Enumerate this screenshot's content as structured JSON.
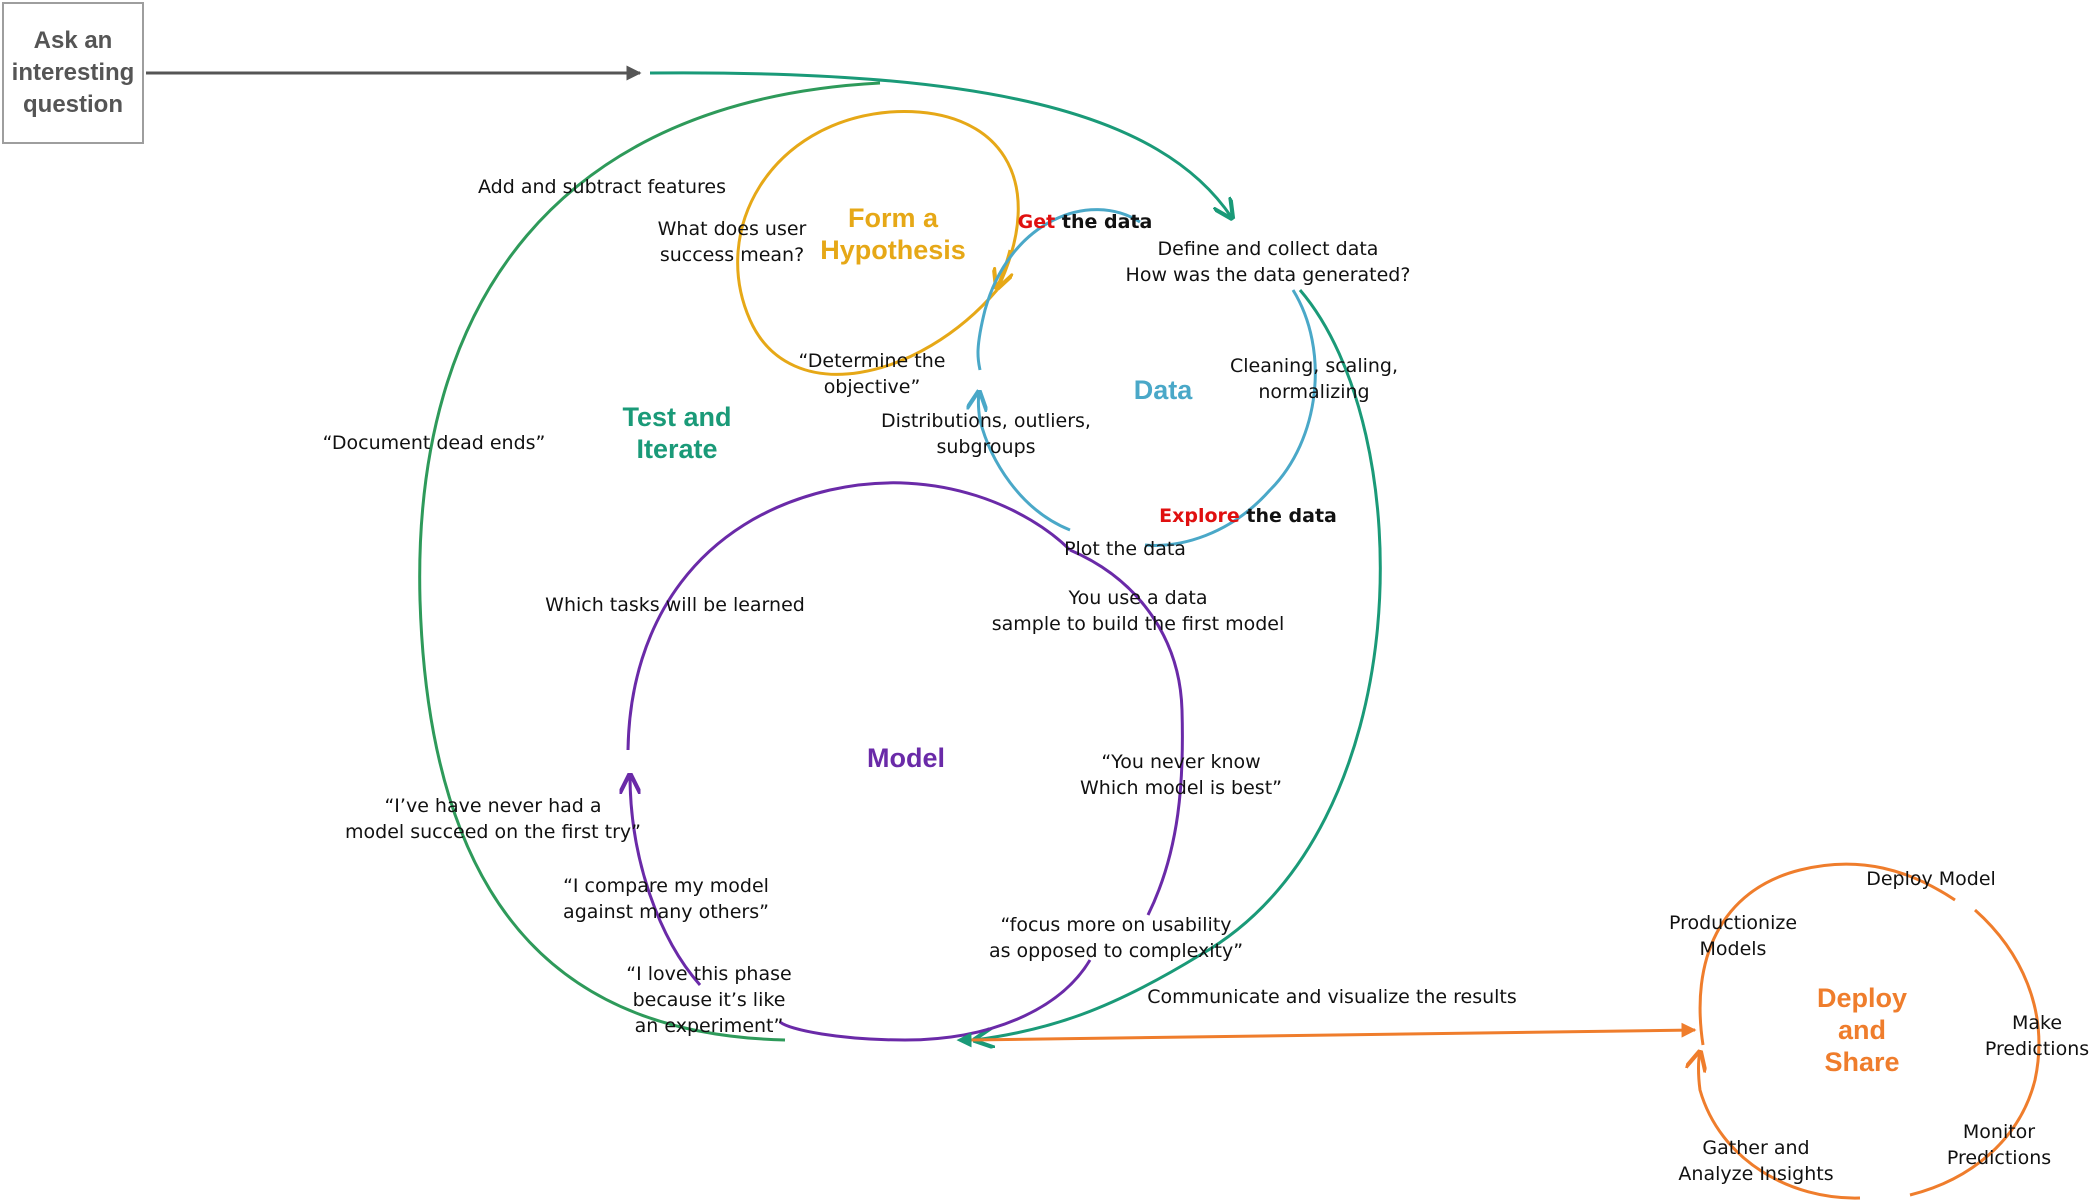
{
  "start": {
    "lines": [
      "Ask an",
      "interesting",
      "question"
    ]
  },
  "colors": {
    "gray": "#555555",
    "teal": "#1a9a78",
    "green": "#2e9a5a",
    "gold": "#e6a817",
    "blue": "#4aa8c8",
    "purple": "#6a2aa8",
    "orange": "#ef7d2c",
    "red": "#e01010"
  },
  "cycles": {
    "hypothesis": {
      "title": [
        "Form a",
        "Hypothesis"
      ],
      "labels": {
        "user_success": [
          "What does user",
          "success mean?"
        ],
        "objective": [
          "“Determine the",
          "objective”"
        ]
      }
    },
    "data": {
      "title": [
        "Data"
      ],
      "labels": {
        "get_red": "Get",
        "get_rest": " the data",
        "define": [
          "Define and collect data",
          "How was the data generated?"
        ],
        "cleaning": [
          "Cleaning, scaling,",
          "normalizing"
        ],
        "explore_red": "Explore",
        "explore_rest": " the data",
        "distributions": [
          "Distributions, outliers,",
          "subgroups"
        ],
        "plot": "Plot the data"
      }
    },
    "test": {
      "title": [
        "Test and",
        "Iterate"
      ],
      "labels": {
        "features": "Add and subtract features",
        "dead_ends": "“Document dead ends”",
        "never_succeed": [
          "“I’ve have never had a",
          "model succeed on the first try”"
        ]
      }
    },
    "model": {
      "title": [
        "Model"
      ],
      "labels": {
        "tasks": "Which tasks will be learned",
        "sample": [
          "You use a data",
          "sample to build the first model"
        ],
        "never_know": [
          "“You never know",
          "Which model is best”"
        ],
        "usability": [
          "“focus more on usability",
          "as opposed to complexity”"
        ],
        "compare": [
          "“I compare my model",
          "against many others”"
        ],
        "love": [
          "“I love this phase",
          "because it’s like",
          "an experiment”"
        ]
      }
    },
    "deploy": {
      "title": [
        "Deploy",
        "and",
        "Share"
      ],
      "labels": {
        "deploy_model": "Deploy Model",
        "productionize": [
          "Productionize",
          "Models"
        ],
        "make_predictions": [
          "Make",
          "Predictions"
        ],
        "monitor": [
          "Monitor",
          "Predictions"
        ],
        "gather": [
          "Gather and",
          "Analyze Insights"
        ]
      }
    }
  },
  "communicate": "Communicate and visualize the results"
}
